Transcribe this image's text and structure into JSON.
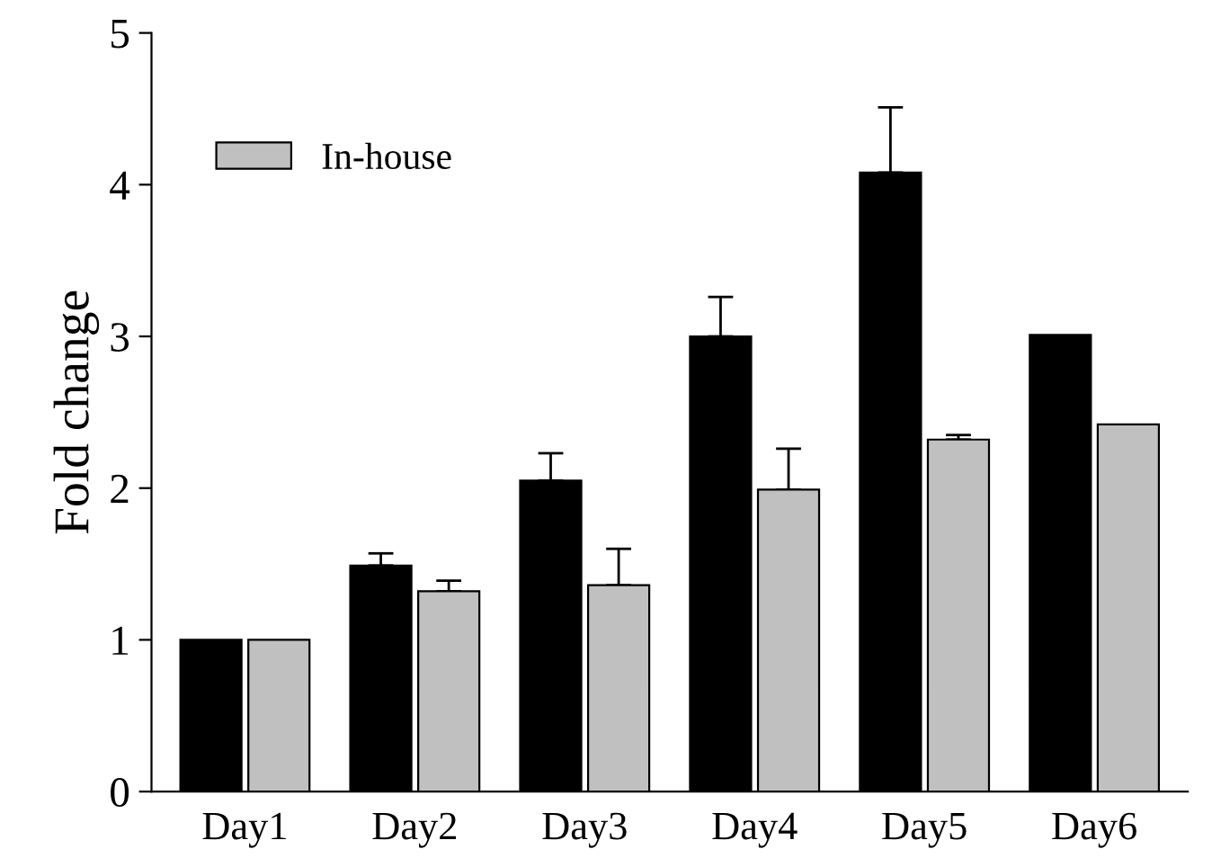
{
  "chart_data": {
    "type": "bar",
    "ylabel": "Fold change",
    "categories": [
      "Day1",
      "Day2",
      "Day3",
      "Day4",
      "Day5",
      "Day6"
    ],
    "series": [
      {
        "color": "#000000",
        "values": [
          1,
          1.49,
          2.05,
          3.0,
          4.08,
          3.01
        ],
        "errors": [
          null,
          [
            1.49,
            1.57
          ],
          [
            2.05,
            2.23
          ],
          [
            3.0,
            3.26
          ],
          [
            4.08,
            4.51
          ],
          null
        ]
      },
      {
        "name": "In-house",
        "color": "#c0c0c0",
        "values": [
          1,
          1.32,
          1.36,
          1.99,
          2.32,
          2.42
        ],
        "errors": [
          null,
          [
            1.32,
            1.39
          ],
          [
            1.36,
            1.6
          ],
          [
            1.99,
            2.26
          ],
          [
            2.32,
            2.35
          ],
          null
        ]
      }
    ],
    "ylim": [
      0,
      5
    ],
    "yticks": [
      0,
      1,
      2,
      3,
      4,
      5
    ],
    "grid": false,
    "legend": "top left"
  }
}
